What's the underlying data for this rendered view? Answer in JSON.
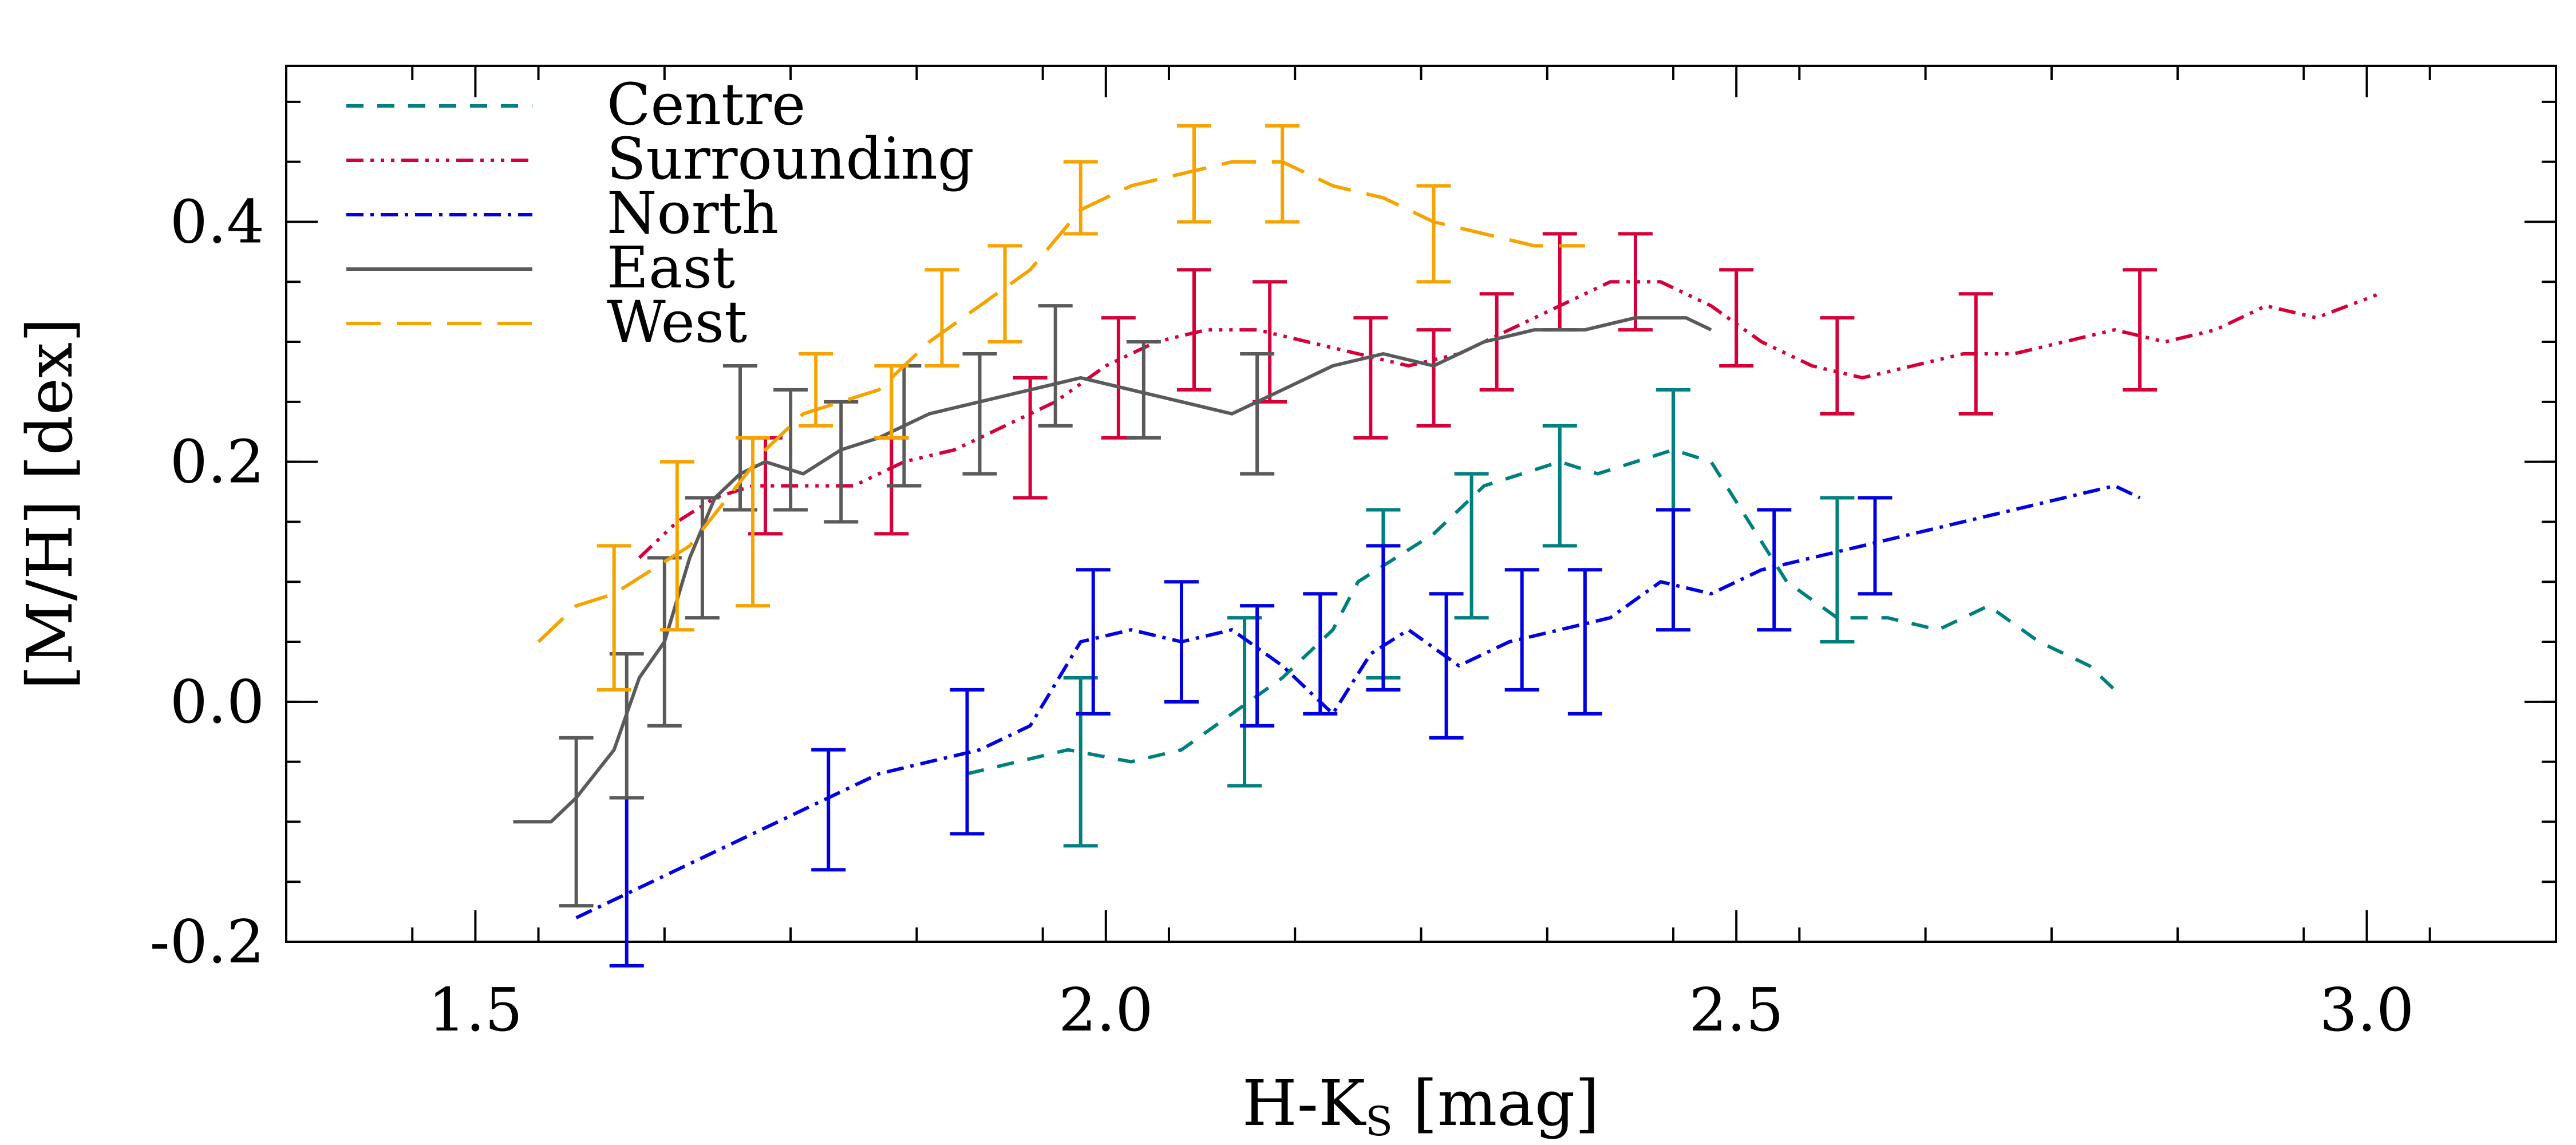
{
  "chart_data": {
    "type": "line",
    "xlabel_main": "H-K",
    "xlabel_sub": "S",
    "xlabel_rest": " [mag]",
    "ylabel": "[M/H] [dex]",
    "xlim": [
      1.35,
      3.15
    ],
    "ylim": [
      -0.2,
      0.53
    ],
    "x_ticks": [
      1.5,
      2.0,
      2.5,
      3.0
    ],
    "x_tick_labels": [
      "1.5",
      "2.0",
      "2.5",
      "3.0"
    ],
    "x_minor_step": 0.1,
    "y_ticks": [
      -0.2,
      0.0,
      0.2,
      0.4
    ],
    "y_tick_labels": [
      "-0.2",
      "0.0",
      "0.2",
      "0.4"
    ],
    "y_minor_step": 0.05,
    "grid": false,
    "legend_position": "top-left",
    "series": [
      {
        "name": "Centre",
        "color": "#007f7f",
        "dash": "30,24",
        "x": [
          1.89,
          1.93,
          1.97,
          2.02,
          2.06,
          2.1,
          2.14,
          2.18,
          2.2,
          2.23,
          2.26,
          2.28,
          2.3,
          2.33,
          2.36,
          2.39,
          2.42,
          2.45,
          2.48,
          2.51,
          2.54,
          2.58,
          2.62,
          2.66,
          2.7,
          2.74,
          2.78,
          2.8
        ],
        "y": [
          -0.06,
          -0.05,
          -0.04,
          -0.05,
          -0.04,
          -0.01,
          0.02,
          0.06,
          0.1,
          0.12,
          0.14,
          0.16,
          0.18,
          0.19,
          0.2,
          0.19,
          0.2,
          0.21,
          0.2,
          0.15,
          0.1,
          0.07,
          0.07,
          0.06,
          0.08,
          0.05,
          0.03,
          0.01
        ],
        "err_x": [
          1.98,
          2.11,
          2.22,
          2.29,
          2.36,
          2.45,
          2.58
        ],
        "err_y": [
          -0.05,
          0.0,
          0.09,
          0.13,
          0.18,
          0.21,
          0.11
        ],
        "err_size": [
          0.07,
          0.07,
          0.07,
          0.06,
          0.05,
          0.05,
          0.06
        ]
      },
      {
        "name": "Surrounding",
        "color": "#d4003a",
        "dash": "30,12,6,12,6,12,6,12",
        "x": [
          1.63,
          1.66,
          1.69,
          1.72,
          1.76,
          1.8,
          1.84,
          1.88,
          1.92,
          1.96,
          2.0,
          2.04,
          2.08,
          2.12,
          2.16,
          2.2,
          2.24,
          2.28,
          2.32,
          2.36,
          2.4,
          2.44,
          2.48,
          2.52,
          2.56,
          2.6,
          2.64,
          2.68,
          2.72,
          2.76,
          2.8,
          2.84,
          2.88,
          2.92,
          2.96,
          3.01
        ],
        "y": [
          0.12,
          0.15,
          0.17,
          0.18,
          0.18,
          0.18,
          0.2,
          0.21,
          0.23,
          0.25,
          0.28,
          0.3,
          0.31,
          0.31,
          0.3,
          0.29,
          0.28,
          0.29,
          0.31,
          0.33,
          0.35,
          0.35,
          0.33,
          0.3,
          0.28,
          0.27,
          0.28,
          0.29,
          0.29,
          0.3,
          0.31,
          0.3,
          0.31,
          0.33,
          0.32,
          0.34
        ],
        "err_x": [
          1.73,
          1.83,
          1.94,
          2.01,
          2.07,
          2.13,
          2.21,
          2.26,
          2.31,
          2.36,
          2.42,
          2.5,
          2.58,
          2.69,
          2.82
        ],
        "err_y": [
          0.18,
          0.18,
          0.22,
          0.27,
          0.31,
          0.3,
          0.27,
          0.27,
          0.3,
          0.35,
          0.35,
          0.32,
          0.28,
          0.29,
          0.31
        ],
        "err_size": [
          0.04,
          0.04,
          0.05,
          0.05,
          0.05,
          0.05,
          0.05,
          0.04,
          0.04,
          0.04,
          0.04,
          0.04,
          0.04,
          0.05,
          0.05
        ]
      },
      {
        "name": "North",
        "color": "#0000e0",
        "dash": "30,12,6,12",
        "x": [
          1.58,
          1.62,
          1.66,
          1.7,
          1.74,
          1.78,
          1.82,
          1.86,
          1.9,
          1.94,
          1.98,
          2.02,
          2.06,
          2.1,
          2.14,
          2.18,
          2.21,
          2.24,
          2.28,
          2.32,
          2.36,
          2.4,
          2.44,
          2.48,
          2.52,
          2.56,
          2.6,
          2.64,
          2.68,
          2.72,
          2.76,
          2.8,
          2.82
        ],
        "y": [
          -0.18,
          -0.16,
          -0.14,
          -0.12,
          -0.1,
          -0.08,
          -0.06,
          -0.05,
          -0.04,
          -0.02,
          0.05,
          0.06,
          0.05,
          0.06,
          0.03,
          -0.01,
          0.04,
          0.06,
          0.03,
          0.05,
          0.06,
          0.07,
          0.1,
          0.09,
          0.11,
          0.12,
          0.13,
          0.14,
          0.15,
          0.16,
          0.17,
          0.18,
          0.17
        ],
        "err_x": [
          1.62,
          1.78,
          1.89,
          1.99,
          2.06,
          2.12,
          2.17,
          2.22,
          2.27,
          2.33,
          2.38,
          2.45,
          2.53,
          2.61
        ],
        "err_y": [
          -0.15,
          -0.09,
          -0.05,
          0.05,
          0.05,
          0.03,
          0.04,
          0.07,
          0.03,
          0.06,
          0.05,
          0.11,
          0.11,
          0.13
        ],
        "err_size": [
          0.07,
          0.05,
          0.06,
          0.06,
          0.05,
          0.05,
          0.05,
          0.06,
          0.06,
          0.05,
          0.06,
          0.05,
          0.05,
          0.04
        ]
      },
      {
        "name": "East",
        "color": "#5a5a5a",
        "dash": "",
        "x": [
          1.53,
          1.56,
          1.58,
          1.61,
          1.63,
          1.65,
          1.67,
          1.69,
          1.71,
          1.73,
          1.76,
          1.79,
          1.82,
          1.86,
          1.9,
          1.94,
          1.98,
          2.02,
          2.06,
          2.1,
          2.14,
          2.18,
          2.22,
          2.26,
          2.3,
          2.34,
          2.38,
          2.42,
          2.46,
          2.48
        ],
        "y": [
          -0.1,
          -0.1,
          -0.08,
          -0.04,
          0.02,
          0.05,
          0.12,
          0.17,
          0.19,
          0.2,
          0.19,
          0.21,
          0.22,
          0.24,
          0.25,
          0.26,
          0.27,
          0.26,
          0.25,
          0.24,
          0.26,
          0.28,
          0.29,
          0.28,
          0.3,
          0.31,
          0.31,
          0.32,
          0.32,
          0.31
        ],
        "err_x": [
          1.58,
          1.62,
          1.65,
          1.68,
          1.71,
          1.75,
          1.79,
          1.84,
          1.9,
          1.96,
          2.03,
          2.12
        ],
        "err_y": [
          -0.1,
          -0.02,
          0.05,
          0.12,
          0.22,
          0.21,
          0.2,
          0.23,
          0.24,
          0.28,
          0.26,
          0.24
        ],
        "err_size": [
          0.07,
          0.06,
          0.07,
          0.05,
          0.06,
          0.05,
          0.05,
          0.05,
          0.05,
          0.05,
          0.04,
          0.05
        ]
      },
      {
        "name": "West",
        "color": "#f5a300",
        "dash": "60,28",
        "x": [
          1.55,
          1.58,
          1.61,
          1.64,
          1.67,
          1.7,
          1.73,
          1.76,
          1.79,
          1.82,
          1.86,
          1.9,
          1.94,
          1.98,
          2.02,
          2.06,
          2.1,
          2.14,
          2.18,
          2.22,
          2.26,
          2.3,
          2.34,
          2.38
        ],
        "y": [
          0.05,
          0.08,
          0.09,
          0.11,
          0.13,
          0.17,
          0.21,
          0.24,
          0.25,
          0.26,
          0.3,
          0.33,
          0.36,
          0.41,
          0.43,
          0.44,
          0.45,
          0.45,
          0.43,
          0.42,
          0.4,
          0.39,
          0.38,
          0.38
        ],
        "err_x": [
          1.61,
          1.66,
          1.72,
          1.77,
          1.83,
          1.87,
          1.92,
          1.98,
          2.07,
          2.14,
          2.26
        ],
        "err_y": [
          0.07,
          0.13,
          0.15,
          0.26,
          0.25,
          0.32,
          0.34,
          0.42,
          0.44,
          0.44,
          0.39
        ],
        "err_size": [
          0.06,
          0.07,
          0.07,
          0.03,
          0.03,
          0.04,
          0.04,
          0.03,
          0.04,
          0.04,
          0.04
        ]
      }
    ]
  }
}
